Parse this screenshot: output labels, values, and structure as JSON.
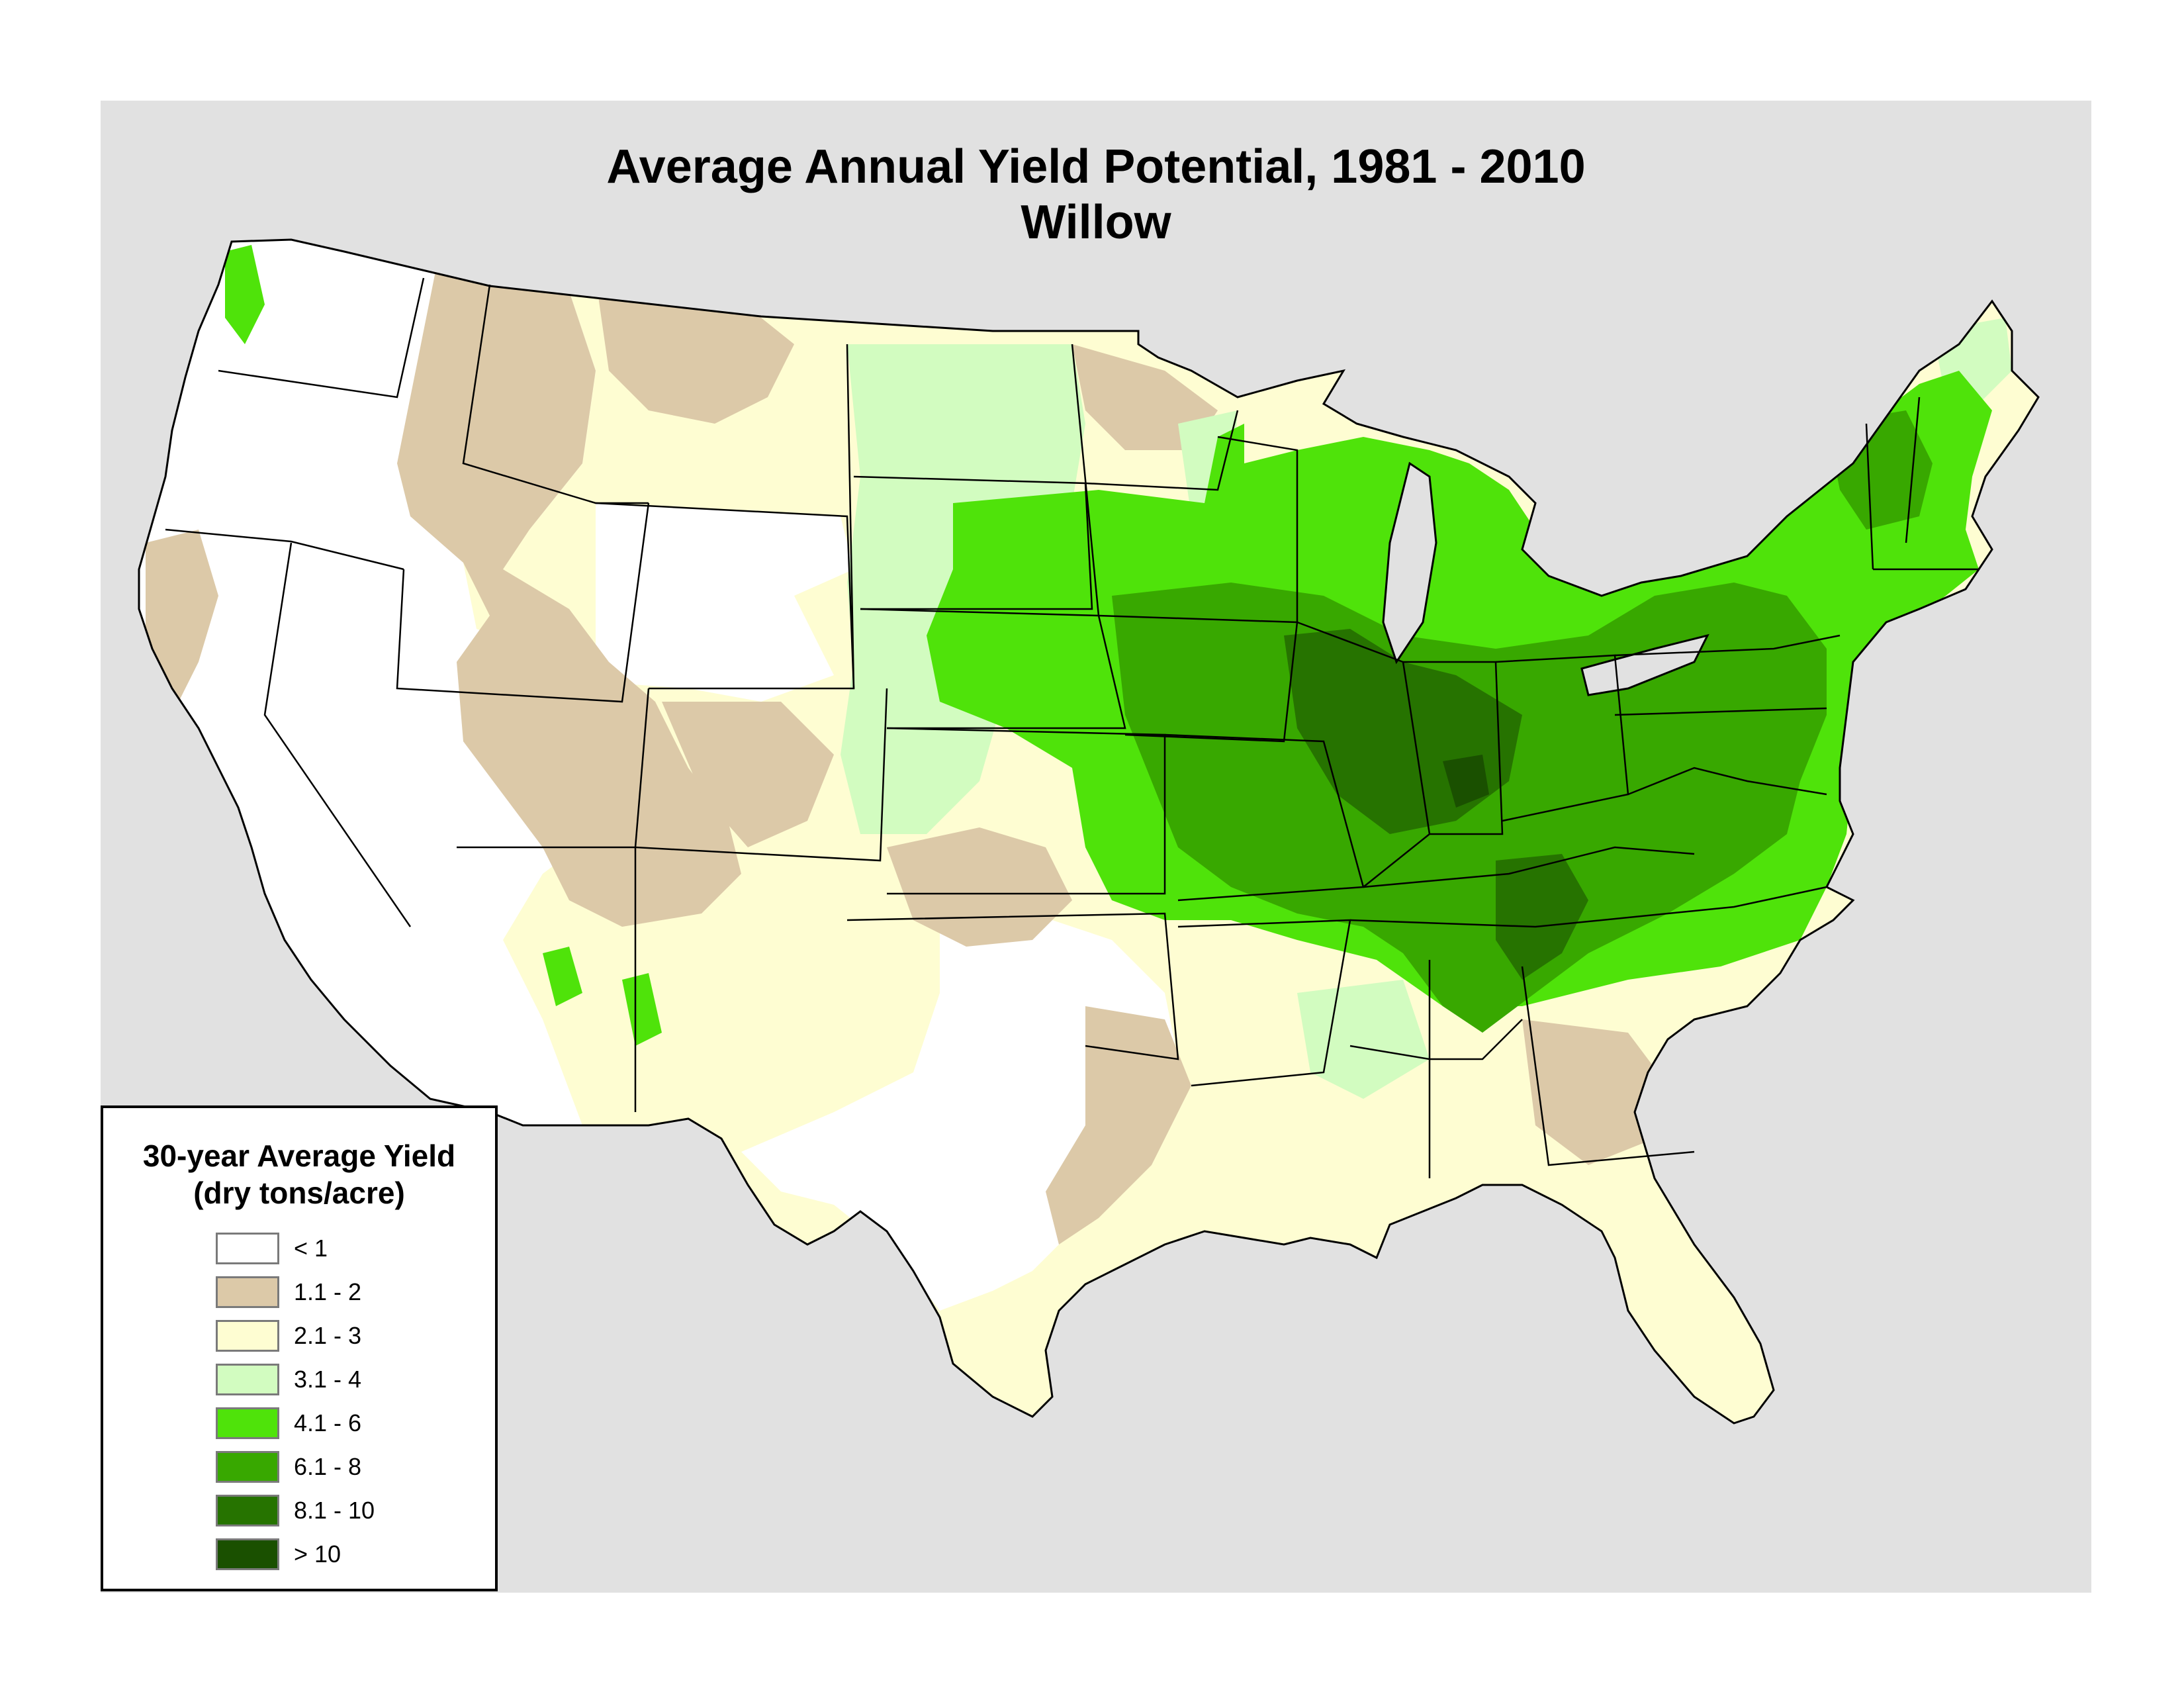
{
  "title": {
    "line1": "Average Annual Yield Potential, 1981 - 2010",
    "line2": "Willow"
  },
  "legend": {
    "title_line1": "30-year Average Yield",
    "title_line2": "(dry tons/acre)",
    "classes": [
      {
        "label": "< 1",
        "color": "#ffffff"
      },
      {
        "label": "1.1 - 2",
        "color": "#dcc9a8"
      },
      {
        "label": "2.1 - 3",
        "color": "#fefdd2"
      },
      {
        "label": "3.1 - 4",
        "color": "#d2fcc0"
      },
      {
        "label": "4.1 - 6",
        "color": "#4fe30a"
      },
      {
        "label": "6.1 - 8",
        "color": "#38a800"
      },
      {
        "label": "8.1 - 10",
        "color": "#267300"
      },
      {
        "label": "> 10",
        "color": "#1a5000"
      }
    ]
  },
  "colors": {
    "background_panel": "#e1e1e1",
    "boundary": "#000000"
  }
}
